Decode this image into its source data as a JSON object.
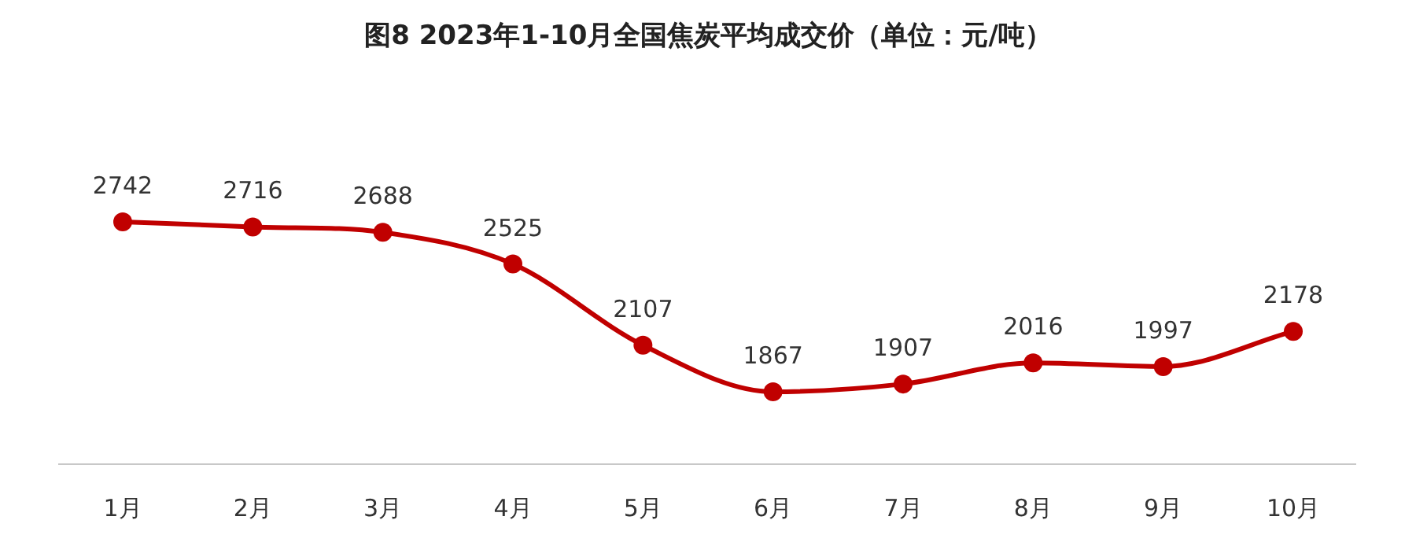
{
  "chart_data": {
    "type": "line",
    "title": "图8 2023年1-10月全国焦炭平均成交价（单位：元/吨）",
    "categories": [
      "1月",
      "2月",
      "3月",
      "4月",
      "5月",
      "6月",
      "7月",
      "8月",
      "9月",
      "10月"
    ],
    "values": [
      2742,
      2716,
      2688,
      2525,
      2107,
      1867,
      1907,
      2016,
      1997,
      2178
    ],
    "color": "#c00000",
    "marker": "circle",
    "data_labels": true
  }
}
